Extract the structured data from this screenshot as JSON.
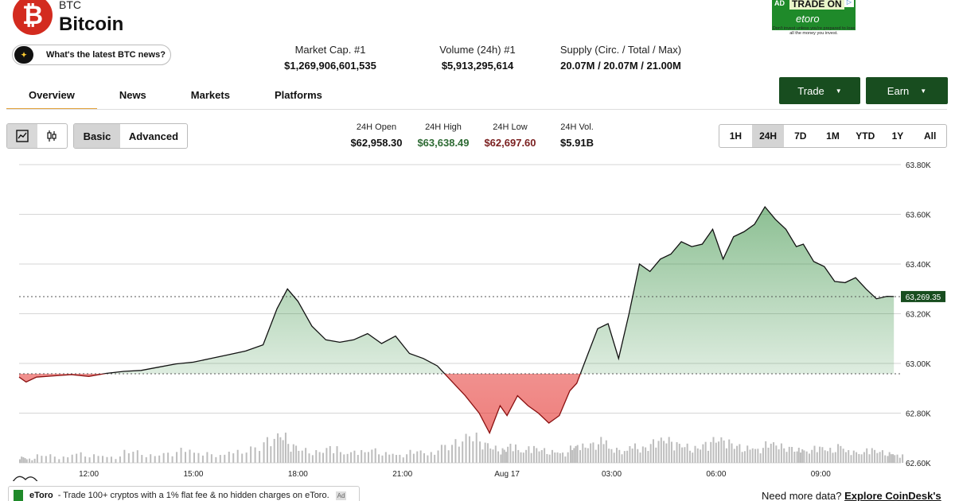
{
  "coin": {
    "symbol": "BTC",
    "name": "Bitcoin",
    "logo_glyph": "₿"
  },
  "news_prompt": "What's the latest BTC news?",
  "market_stats": [
    {
      "label": "Market Cap. #1",
      "value": "$1,269,906,601,535"
    },
    {
      "label": "Volume (24h) #1",
      "value": "$5,913,295,614"
    },
    {
      "label": "Supply (Circ. / Total / Max)",
      "value": "20.07M / 20.07M / 21.00M"
    }
  ],
  "ad": {
    "tag": "AD",
    "title": "TRADE ON",
    "brand": "etoro",
    "disclaimer": "Don't invest unless you're prepared to lose all the money you invest."
  },
  "tabs": [
    "Overview",
    "News",
    "Markets",
    "Platforms"
  ],
  "actions": {
    "trade": "Trade",
    "earn": "Earn"
  },
  "chart_modes": {
    "basic": "Basic",
    "advanced": "Advanced"
  },
  "quick_stats": [
    {
      "label": "24H Open",
      "value": "$62,958.30",
      "color": "#111111"
    },
    {
      "label": "24H High",
      "value": "$63,638.49",
      "color": "#2e6b34"
    },
    {
      "label": "24H Low",
      "value": "$62,697.60",
      "color": "#7a1f1f"
    },
    {
      "label": "24H Vol.",
      "value": "$5.91B",
      "color": "#111111"
    }
  ],
  "ranges": [
    "1H",
    "24H",
    "7D",
    "1M",
    "YTD",
    "1Y",
    "All"
  ],
  "footer": {
    "ad_brand": "eToro",
    "ad_text": "- Trade 100+ cryptos with a 1% flat fee & no hidden charges on eToro.",
    "ad_tag": "Ad",
    "need_more": "Need more data?",
    "api_link": "Explore CoinDesk's API"
  },
  "colors": {
    "up": "#1b7a2a",
    "down": "#c62828",
    "accent": "#e2a33b",
    "button": "#184d1f"
  },
  "chart_data": {
    "type": "area",
    "baseline": 62958.3,
    "current_price_label": "63,269.35",
    "y_ticks": [
      "63.80K",
      "63.60K",
      "63.40K",
      "63.20K",
      "63.00K",
      "62.80K",
      "62.60K"
    ],
    "ylim": [
      62600,
      63800
    ],
    "x_ticks": [
      "12:00",
      "15:00",
      "18:00",
      "21:00",
      "Aug 17",
      "03:00",
      "06:00",
      "09:00"
    ],
    "x_tick_hours": [
      2,
      5,
      8,
      11,
      14,
      17,
      20,
      23
    ],
    "hours": [
      0,
      0.2,
      0.5,
      1.0,
      1.5,
      2.0,
      2.5,
      3.0,
      3.5,
      4.0,
      4.5,
      5.0,
      5.5,
      6.0,
      6.5,
      7.0,
      7.4,
      7.7,
      8.0,
      8.4,
      8.8,
      9.2,
      9.6,
      10.0,
      10.4,
      10.8,
      11.2,
      11.6,
      12.0,
      12.4,
      12.8,
      13.2,
      13.5,
      13.8,
      14.0,
      14.3,
      14.6,
      14.9,
      15.2,
      15.5,
      15.8,
      16.0,
      16.3,
      16.6,
      16.9,
      17.2,
      17.5,
      17.8,
      18.1,
      18.4,
      18.7,
      19.0,
      19.3,
      19.6,
      19.9,
      20.2,
      20.5,
      20.8,
      21.1,
      21.4,
      21.7,
      22.0,
      22.3,
      22.5,
      22.8,
      23.1,
      23.4,
      23.7,
      24.0,
      24.3,
      24.6,
      24.9,
      25.1
    ],
    "prices": [
      62945,
      62925,
      62945,
      62950,
      62955,
      62948,
      62960,
      62968,
      62972,
      62985,
      62998,
      63005,
      63020,
      63035,
      63050,
      63075,
      63220,
      63300,
      63250,
      63150,
      63095,
      63085,
      63095,
      63120,
      63080,
      63110,
      63040,
      63020,
      62990,
      62930,
      62870,
      62800,
      62720,
      62830,
      62790,
      62870,
      62830,
      62800,
      62760,
      62790,
      62890,
      62920,
      63030,
      63140,
      63160,
      63020,
      63200,
      63400,
      63370,
      63420,
      63440,
      63490,
      63470,
      63480,
      63540,
      63420,
      63510,
      63530,
      63560,
      63630,
      63580,
      63540,
      63470,
      63480,
      63410,
      63390,
      63330,
      63325,
      63345,
      63300,
      63260,
      63270,
      63269
    ],
    "volumes": [
      3,
      2,
      4,
      3,
      5,
      4,
      3,
      6,
      4,
      5,
      7,
      5,
      4,
      6,
      8,
      12,
      14,
      9,
      7,
      6,
      8,
      5,
      6,
      7,
      5,
      4,
      6,
      5,
      9,
      11,
      14,
      10,
      8,
      7,
      9,
      6,
      8,
      7,
      6,
      5,
      8,
      9,
      10,
      12,
      7,
      6,
      9,
      8,
      11,
      12,
      10,
      9,
      8,
      10,
      12,
      11,
      9,
      8,
      7,
      10,
      9,
      8,
      7,
      6,
      8,
      7,
      9,
      6,
      5,
      7,
      6,
      5,
      4
    ]
  }
}
